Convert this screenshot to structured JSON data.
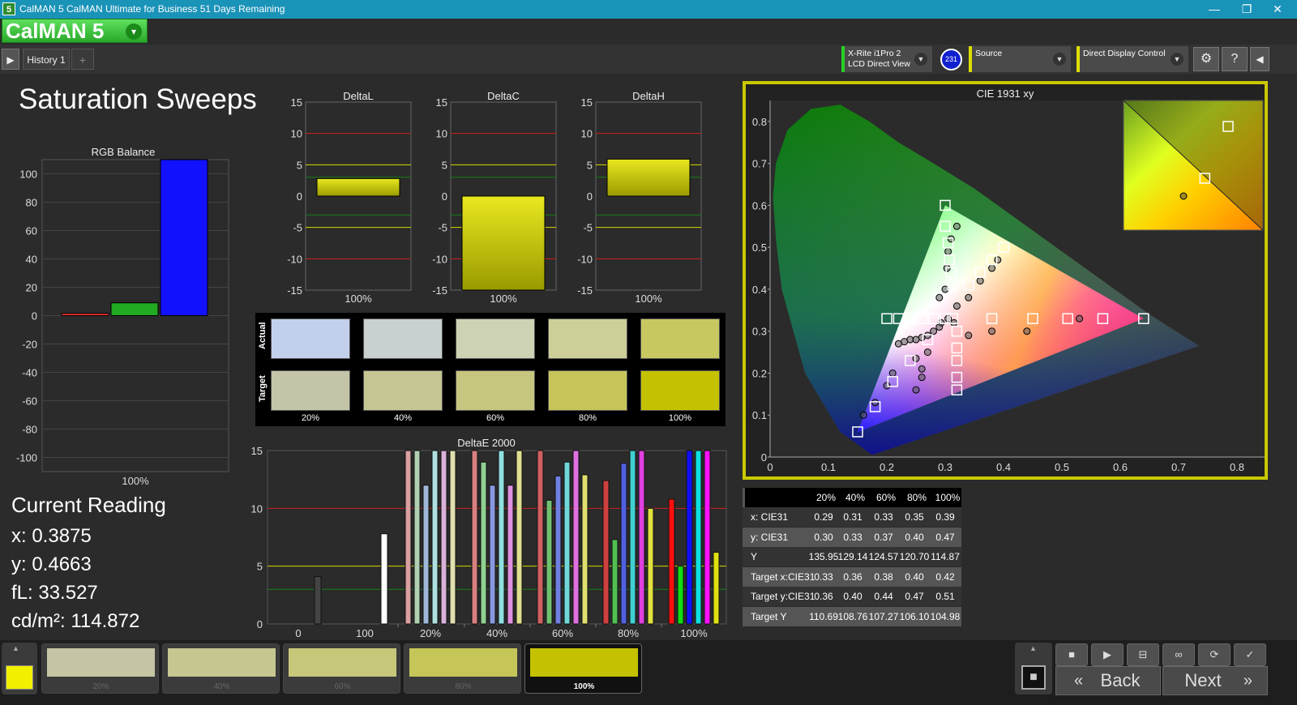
{
  "window": {
    "title": "CalMAN 5 CalMAN Ultimate for Business 51 Days Remaining",
    "icon_text": "5",
    "minimize": "—",
    "restore": "❐",
    "close": "✕"
  },
  "brand": {
    "name": "CalMAN 5",
    "dropdown": "▾"
  },
  "toolbar": {
    "play": "▶",
    "history_tab": "History 1",
    "add_tab": "+",
    "meter": {
      "line1": "X-Rite i1Pro 2",
      "line2": "LCD Direct View",
      "badge": "231"
    },
    "source": {
      "label": "Source"
    },
    "display": {
      "label": "Direct Display Control"
    },
    "settings": "⚙",
    "help": "?",
    "collapse": "◀"
  },
  "page": {
    "title": "Saturation Sweeps"
  },
  "current_reading": {
    "heading": "Current Reading",
    "x": "x: 0.3875",
    "y": "y: 0.4663",
    "fl": "fL: 33.527",
    "cdm2": "cd/m²: 114.872"
  },
  "rgb_balance": {
    "title": "RGB Balance",
    "ylim": [
      -110,
      110
    ],
    "ticks": [
      "100",
      "80",
      "60",
      "40",
      "20",
      "0",
      "-20",
      "-40",
      "-60",
      "-80",
      "-100"
    ],
    "category": "100%",
    "chart_data": {
      "type": "bar",
      "categories": [
        "100%"
      ],
      "series": [
        {
          "name": "R",
          "values": [
            1.5
          ],
          "color": "#ff3333"
        },
        {
          "name": "G",
          "values": [
            9
          ],
          "color": "#22aa22"
        },
        {
          "name": "B",
          "values": [
            110
          ],
          "color": "#1111ff"
        }
      ]
    }
  },
  "delta_charts": [
    {
      "title": "DeltaL",
      "category": "100%",
      "value": 2.8,
      "ticks": [
        "15",
        "10",
        "5",
        "0",
        "-5",
        "-10",
        "-15"
      ]
    },
    {
      "title": "DeltaC",
      "category": "100%",
      "value": -15,
      "ticks": [
        "15",
        "10",
        "5",
        "0",
        "-5",
        "-10",
        "-15"
      ]
    },
    {
      "title": "DeltaH",
      "category": "100%",
      "value": 5.9,
      "ticks": [
        "15",
        "10",
        "5",
        "0",
        "-5",
        "-10",
        "-15"
      ]
    }
  ],
  "swatches": {
    "actual_label": "Actual",
    "target_label": "Target",
    "items": [
      {
        "label": "20%",
        "actual": "#c3d0ec",
        "target": "#c4c4a8"
      },
      {
        "label": "40%",
        "actual": "#c8d0d0",
        "target": "#c6c694"
      },
      {
        "label": "60%",
        "actual": "#cdd2b4",
        "target": "#c7c67e"
      },
      {
        "label": "80%",
        "actual": "#cccf98",
        "target": "#c6c55a"
      },
      {
        "label": "100%",
        "actual": "#c8c860",
        "target": "#c4c200"
      }
    ]
  },
  "deltae": {
    "title": "DeltaE 2000",
    "yticks": [
      "15",
      "10",
      "5",
      "0"
    ],
    "xlabels": [
      "0",
      "100",
      "20%",
      "40%",
      "60%",
      "80%",
      "100%"
    ],
    "chart_data": {
      "type": "bar",
      "ylim": [
        0,
        15
      ],
      "groups": [
        {
          "label": "0",
          "values": [
            4.1
          ],
          "colors": [
            "#444"
          ]
        },
        {
          "label": "100",
          "values": [
            7.8
          ],
          "colors": [
            "#ffffff"
          ]
        },
        {
          "label": "20%",
          "values": [
            15,
            15,
            12,
            15,
            15,
            15
          ],
          "colors": [
            "#d9a0a0",
            "#b0d0b0",
            "#a0b8d8",
            "#b0e0e0",
            "#d8b0d8",
            "#e0e0b0"
          ]
        },
        {
          "label": "40%",
          "values": [
            15,
            14,
            12,
            15,
            12,
            15
          ],
          "colors": [
            "#d88080",
            "#90d090",
            "#8898e0",
            "#90e0e0",
            "#e090e0",
            "#e0e090"
          ]
        },
        {
          "label": "60%",
          "values": [
            15,
            10.7,
            12.8,
            14,
            15,
            12.9
          ],
          "colors": [
            "#d06060",
            "#70c070",
            "#7080e0",
            "#70d8d8",
            "#e070e0",
            "#e0e070"
          ]
        },
        {
          "label": "80%",
          "values": [
            12.4,
            7.3,
            13.9,
            15,
            15,
            10
          ],
          "colors": [
            "#d04040",
            "#50c050",
            "#5060e0",
            "#40d0d0",
            "#e040e0",
            "#e0e040"
          ]
        },
        {
          "label": "100%",
          "values": [
            10.8,
            5,
            15,
            15,
            15,
            6.2
          ],
          "colors": [
            "#ff1010",
            "#10dd10",
            "#1010ff",
            "#10e0e0",
            "#ff10ff",
            "#e0e010"
          ]
        }
      ]
    }
  },
  "cie": {
    "title": "CIE 1931 xy",
    "xticks": [
      "0",
      "0.1",
      "0.2",
      "0.3",
      "0.4",
      "0.5",
      "0.6",
      "0.7",
      "0.8"
    ],
    "yticks": [
      "0",
      "0.1",
      "0.2",
      "0.3",
      "0.4",
      "0.5",
      "0.6",
      "0.7",
      "0.8"
    ],
    "chart_data": {
      "type": "scatter",
      "xlim": [
        0,
        0.85
      ],
      "ylim": [
        0,
        0.85
      ],
      "gamut": [
        [
          0.64,
          0.33
        ],
        [
          0.3,
          0.6
        ],
        [
          0.15,
          0.06
        ]
      ],
      "targets": [
        [
          0.3,
          0.6
        ],
        [
          0.3,
          0.55
        ],
        [
          0.305,
          0.51
        ],
        [
          0.307,
          0.47
        ],
        [
          0.31,
          0.44
        ],
        [
          0.313,
          0.41
        ],
        [
          0.313,
          0.33
        ],
        [
          0.4,
          0.5
        ],
        [
          0.38,
          0.47
        ],
        [
          0.36,
          0.44
        ],
        [
          0.34,
          0.41
        ],
        [
          0.2,
          0.33
        ],
        [
          0.22,
          0.33
        ],
        [
          0.24,
          0.33
        ],
        [
          0.26,
          0.33
        ],
        [
          0.28,
          0.33
        ],
        [
          0.3,
          0.33
        ],
        [
          0.38,
          0.33
        ],
        [
          0.45,
          0.33
        ],
        [
          0.51,
          0.33
        ],
        [
          0.57,
          0.33
        ],
        [
          0.64,
          0.33
        ],
        [
          0.32,
          0.3
        ],
        [
          0.32,
          0.26
        ],
        [
          0.32,
          0.23
        ],
        [
          0.32,
          0.19
        ],
        [
          0.32,
          0.16
        ],
        [
          0.27,
          0.28
        ],
        [
          0.24,
          0.23
        ],
        [
          0.21,
          0.18
        ],
        [
          0.18,
          0.12
        ],
        [
          0.15,
          0.06
        ]
      ],
      "actuals": [
        [
          0.32,
          0.55
        ],
        [
          0.31,
          0.52
        ],
        [
          0.305,
          0.49
        ],
        [
          0.303,
          0.45
        ],
        [
          0.3,
          0.4
        ],
        [
          0.29,
          0.38
        ],
        [
          0.39,
          0.47
        ],
        [
          0.38,
          0.45
        ],
        [
          0.36,
          0.42
        ],
        [
          0.34,
          0.38
        ],
        [
          0.32,
          0.36
        ],
        [
          0.305,
          0.33
        ],
        [
          0.315,
          0.32
        ],
        [
          0.293,
          0.32
        ],
        [
          0.38,
          0.3
        ],
        [
          0.44,
          0.3
        ],
        [
          0.53,
          0.33
        ],
        [
          0.34,
          0.29
        ],
        [
          0.22,
          0.27
        ],
        [
          0.23,
          0.275
        ],
        [
          0.24,
          0.28
        ],
        [
          0.25,
          0.28
        ],
        [
          0.26,
          0.285
        ],
        [
          0.27,
          0.29
        ],
        [
          0.28,
          0.3
        ],
        [
          0.29,
          0.31
        ],
        [
          0.27,
          0.25
        ],
        [
          0.26,
          0.21
        ],
        [
          0.26,
          0.19
        ],
        [
          0.25,
          0.16
        ],
        [
          0.21,
          0.2
        ],
        [
          0.2,
          0.17
        ],
        [
          0.18,
          0.13
        ],
        [
          0.16,
          0.1
        ],
        [
          0.25,
          0.235
        ]
      ],
      "inset": {
        "targets": [
          [
            0.4,
            0.47
          ],
          [
            0.42,
            0.51
          ]
        ],
        "actuals": [
          [
            0.39,
            0.46
          ]
        ]
      }
    }
  },
  "table": {
    "headers": [
      "",
      "20%",
      "40%",
      "60%",
      "80%",
      "100%"
    ],
    "rows": [
      {
        "label": "x: CIE31",
        "values": [
          "0.29",
          "0.31",
          "0.33",
          "0.35",
          "0.39"
        ]
      },
      {
        "label": "y: CIE31",
        "values": [
          "0.30",
          "0.33",
          "0.37",
          "0.40",
          "0.47"
        ]
      },
      {
        "label": "Y",
        "values": [
          "135.95",
          "129.14",
          "124.57",
          "120.70",
          "114.87"
        ]
      },
      {
        "label": "Target x:CIE31",
        "values": [
          "0.33",
          "0.36",
          "0.38",
          "0.40",
          "0.42"
        ]
      },
      {
        "label": "Target y:CIE31",
        "values": [
          "0.36",
          "0.40",
          "0.44",
          "0.47",
          "0.51"
        ]
      },
      {
        "label": "Target Y",
        "values": [
          "110.69",
          "108.76",
          "107.27",
          "106.10",
          "104.98"
        ]
      }
    ]
  },
  "bottom": {
    "current_color": "#f0f000",
    "up": "▲",
    "swatches": [
      {
        "label": "20%",
        "color": "#c5c5a6"
      },
      {
        "label": "40%",
        "color": "#c6c690"
      },
      {
        "label": "60%",
        "color": "#c7c77a"
      },
      {
        "label": "80%",
        "color": "#c6c658"
      },
      {
        "label": "100%",
        "color": "#c4c200"
      }
    ],
    "controls": [
      "■",
      "▶",
      "⊟",
      "∞",
      "⟳",
      "✓"
    ],
    "back": "Back",
    "next": "Next",
    "back_icon": "«",
    "next_icon": "»",
    "stop": "■"
  }
}
